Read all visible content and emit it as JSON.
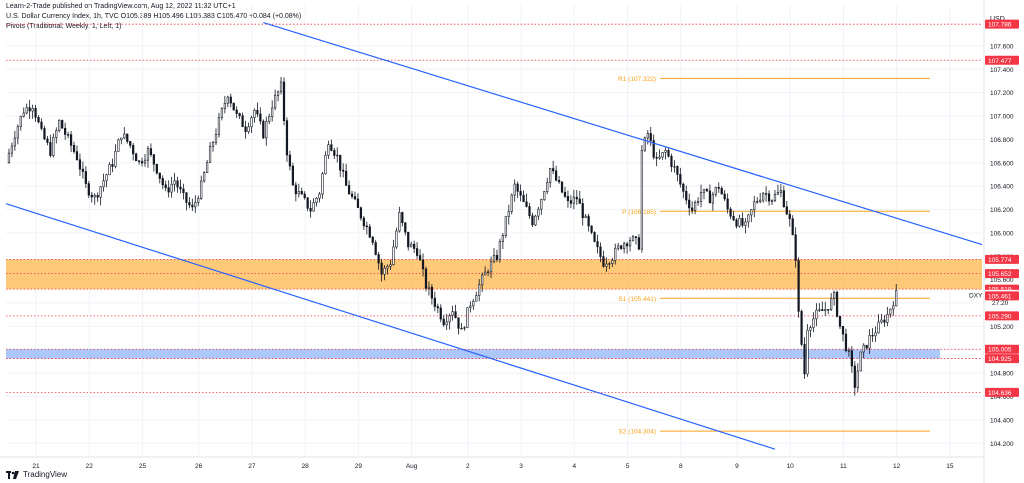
{
  "header": {
    "published": "Learn-2-Trade published on TradingView.com, Aug 12, 2022 11:32 UTC+1",
    "symbol_line": "U.S. Dollar Currency Index, 1h, TVC  O105.389  H105.496  L105.383  C105.470  +0.084 (+0.08%)",
    "indicator_line": "Pivots (Traditional, Weekly, 1, Left, 1)"
  },
  "footer": {
    "logo_text": "TradingView"
  },
  "colors": {
    "candle": "#131722",
    "trendline": "#2962ff",
    "pivot": "#f7a21b",
    "resistance_zone": "#ffb74d",
    "support_zone": "#90b4f5",
    "red_label": "#f23645",
    "grid": "#f0f3fa"
  },
  "chart_data": {
    "type": "candlestick",
    "symbol": "DXY",
    "currency": "USD",
    "y_axis": {
      "ylim": [
        104.1,
        107.95
      ],
      "tick_labels": [
        "107.600",
        "107.400",
        "107.200",
        "107.000",
        "106.800",
        "106.600",
        "106.400",
        "106.200",
        "106.000",
        "105.800",
        "105.600",
        "105.400",
        "105.200",
        "105.000",
        "104.800",
        "104.600",
        "104.400",
        "104.200"
      ],
      "ticks": [
        107.6,
        107.4,
        107.2,
        107.0,
        106.8,
        106.6,
        106.4,
        106.2,
        106.0,
        105.8,
        105.6,
        105.4,
        105.2,
        105.0,
        104.8,
        104.6,
        104.4,
        104.2
      ]
    },
    "x_axis": {
      "labels": [
        "21",
        "22",
        "25",
        "26",
        "27",
        "28",
        "29",
        "Aug",
        "2",
        "3",
        "4",
        "5",
        "8",
        "9",
        "10",
        "11",
        "12",
        "15"
      ]
    },
    "close_series": [
      [
        0,
        106.6
      ],
      [
        3,
        106.85
      ],
      [
        6,
        107.05
      ],
      [
        9,
        107.1
      ],
      [
        12,
        106.85
      ],
      [
        15,
        106.7
      ],
      [
        18,
        106.95
      ],
      [
        21,
        106.8
      ],
      [
        24,
        106.65
      ],
      [
        27,
        106.4
      ],
      [
        30,
        106.3
      ],
      [
        33,
        106.45
      ],
      [
        36,
        106.6
      ],
      [
        39,
        106.85
      ],
      [
        42,
        106.75
      ],
      [
        45,
        106.6
      ],
      [
        48,
        106.7
      ],
      [
        51,
        106.55
      ],
      [
        54,
        106.35
      ],
      [
        57,
        106.45
      ],
      [
        60,
        106.3
      ],
      [
        63,
        106.2
      ],
      [
        66,
        106.4
      ],
      [
        69,
        106.7
      ],
      [
        72,
        106.95
      ],
      [
        75,
        107.2
      ],
      [
        78,
        107.0
      ],
      [
        81,
        106.9
      ],
      [
        84,
        107.05
      ],
      [
        87,
        106.85
      ],
      [
        90,
        107.1
      ],
      [
        93,
        107.25
      ],
      [
        95,
        106.7
      ],
      [
        97,
        106.4
      ],
      [
        100,
        106.3
      ],
      [
        103,
        106.2
      ],
      [
        106,
        106.35
      ],
      [
        109,
        106.8
      ],
      [
        112,
        106.65
      ],
      [
        115,
        106.4
      ],
      [
        118,
        106.25
      ],
      [
        121,
        106.1
      ],
      [
        124,
        105.95
      ],
      [
        127,
        105.65
      ],
      [
        130,
        105.75
      ],
      [
        133,
        106.15
      ],
      [
        136,
        105.9
      ],
      [
        139,
        105.85
      ],
      [
        142,
        105.55
      ],
      [
        145,
        105.4
      ],
      [
        148,
        105.25
      ],
      [
        151,
        105.35
      ],
      [
        154,
        105.15
      ],
      [
        157,
        105.4
      ],
      [
        160,
        105.55
      ],
      [
        163,
        105.7
      ],
      [
        166,
        105.8
      ],
      [
        169,
        106.1
      ],
      [
        172,
        106.4
      ],
      [
        175,
        106.25
      ],
      [
        178,
        106.1
      ],
      [
        181,
        106.3
      ],
      [
        184,
        106.55
      ],
      [
        187,
        106.4
      ],
      [
        190,
        106.25
      ],
      [
        193,
        106.3
      ],
      [
        196,
        106.1
      ],
      [
        199,
        105.9
      ],
      [
        202,
        105.75
      ],
      [
        205,
        105.8
      ],
      [
        208,
        105.9
      ],
      [
        211,
        105.95
      ],
      [
        214,
        105.9
      ],
      [
        215,
        106.7
      ],
      [
        217,
        106.85
      ],
      [
        220,
        106.6
      ],
      [
        223,
        106.7
      ],
      [
        226,
        106.55
      ],
      [
        229,
        106.35
      ],
      [
        232,
        106.2
      ],
      [
        235,
        106.35
      ],
      [
        238,
        106.3
      ],
      [
        241,
        106.4
      ],
      [
        244,
        106.2
      ],
      [
        247,
        106.1
      ],
      [
        250,
        106.05
      ],
      [
        253,
        106.25
      ],
      [
        256,
        106.35
      ],
      [
        259,
        106.3
      ],
      [
        262,
        106.35
      ],
      [
        265,
        106.1
      ],
      [
        267,
        105.8
      ],
      [
        268,
        105.3
      ],
      [
        270,
        104.8
      ],
      [
        271,
        105.2
      ],
      [
        274,
        105.3
      ],
      [
        277,
        105.35
      ],
      [
        280,
        105.45
      ],
      [
        282,
        105.2
      ],
      [
        285,
        104.95
      ],
      [
        287,
        104.7
      ],
      [
        289,
        104.95
      ],
      [
        292,
        105.1
      ],
      [
        295,
        105.2
      ],
      [
        298,
        105.3
      ],
      [
        300,
        105.42
      ],
      [
        301,
        105.47
      ]
    ],
    "data_range": {
      "high": 107.45,
      "low": 104.62,
      "last": 105.47
    },
    "trendlines": [
      {
        "name": "upper-channel",
        "points": [
          [
            87,
            107.8
          ],
          [
            330,
            105.9
          ]
        ]
      },
      {
        "name": "lower-channel",
        "points": [
          [
            0,
            106.25
          ],
          [
            260,
            104.15
          ]
        ]
      }
    ],
    "pivots": [
      {
        "label": "R1 (107.322)",
        "value": 107.322
      },
      {
        "label": "P (106.185)",
        "value": 106.185
      },
      {
        "label": "S1 (105.441)",
        "value": 105.441
      },
      {
        "label": "S2 (104.304)",
        "value": 104.304
      }
    ],
    "zones": [
      {
        "name": "resistance-zone",
        "from": 105.519,
        "to": 105.774
      },
      {
        "name": "support-zone",
        "from": 104.925,
        "to": 105.005
      }
    ],
    "price_labels": [
      {
        "value": 107.786,
        "text": "107.786",
        "style": "red"
      },
      {
        "value": 107.477,
        "text": "107.477",
        "style": "red"
      },
      {
        "value": 105.774,
        "text": "105.774",
        "style": "red"
      },
      {
        "value": 105.652,
        "text": "105.652",
        "style": "red"
      },
      {
        "value": 105.519,
        "text": "105.519",
        "style": "red"
      },
      {
        "value": 105.47,
        "text": "105.470",
        "style": "last",
        "sub": "27:20"
      },
      {
        "value": 105.461,
        "text": "105.461",
        "style": "red"
      },
      {
        "value": 105.29,
        "text": "105.290",
        "style": "red"
      },
      {
        "value": 105.005,
        "text": "105.005",
        "style": "red"
      },
      {
        "value": 104.925,
        "text": "104.925",
        "style": "red"
      },
      {
        "value": 104.636,
        "text": "104.636",
        "style": "red"
      }
    ],
    "horizontal_dotted_lines": [
      107.786,
      107.477,
      105.774,
      105.652,
      105.519,
      105.29,
      105.005,
      104.925,
      104.636
    ],
    "symbol_tag": "DXY"
  }
}
